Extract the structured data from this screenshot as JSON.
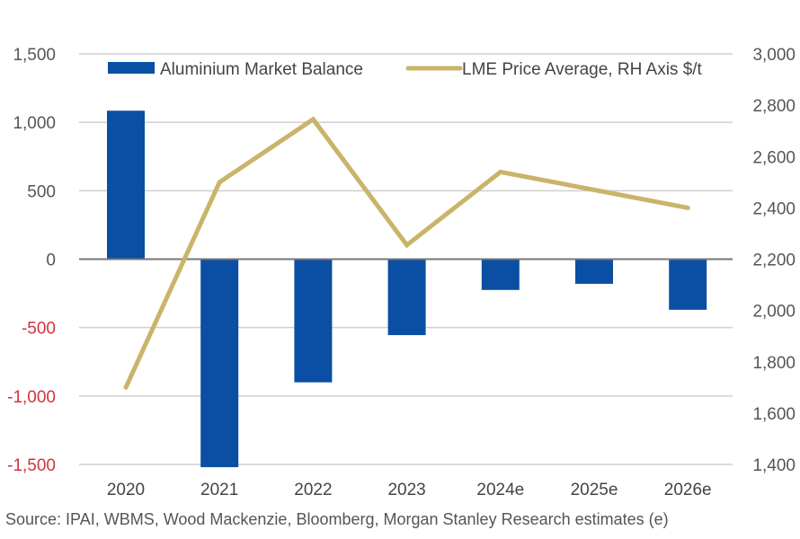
{
  "chart_data": {
    "type": "bar+line",
    "title": "",
    "categories": [
      "2020",
      "2021",
      "2022",
      "2023",
      "2024e",
      "2025e",
      "2026e"
    ],
    "series": [
      {
        "name": "Aluminium Market Balance",
        "type": "bar",
        "axis": "left",
        "color": "#0a4fa3",
        "values": [
          1085,
          -1520,
          -900,
          -555,
          -225,
          -180,
          -370
        ]
      },
      {
        "name": "LME Price Average, RH Axis $/t",
        "type": "line",
        "axis": "right",
        "color": "#c9b46a",
        "values": [
          1700,
          2500,
          2745,
          2255,
          2540,
          2470,
          2400
        ]
      }
    ],
    "left_axis": {
      "ylim": [
        -1500,
        1500
      ],
      "ticks": [
        1500,
        1000,
        500,
        0,
        -500,
        -1000,
        -1500
      ],
      "tick_labels": [
        "1,500",
        "1,000",
        "500",
        "0",
        "-500",
        "-1,000",
        "-1,500"
      ],
      "negative_color": "#d0343d",
      "positive_color": "#555555"
    },
    "right_axis": {
      "ylim": [
        1400,
        3000
      ],
      "ticks": [
        3000,
        2800,
        2600,
        2400,
        2200,
        2000,
        1800,
        1600,
        1400
      ],
      "tick_labels": [
        "3,000",
        "2,800",
        "2,600",
        "2,400",
        "2,200",
        "2,000",
        "1,800",
        "1,600",
        "1,400"
      ]
    },
    "grid": true,
    "legend": {
      "position": "top",
      "entries": [
        "Aluminium Market Balance",
        "LME Price Average, RH Axis $/t"
      ]
    },
    "xlabel": "",
    "ylabel": ""
  },
  "source": "Source: IPAI, WBMS, Wood Mackenzie, Bloomberg, Morgan Stanley Research estimates (e)"
}
